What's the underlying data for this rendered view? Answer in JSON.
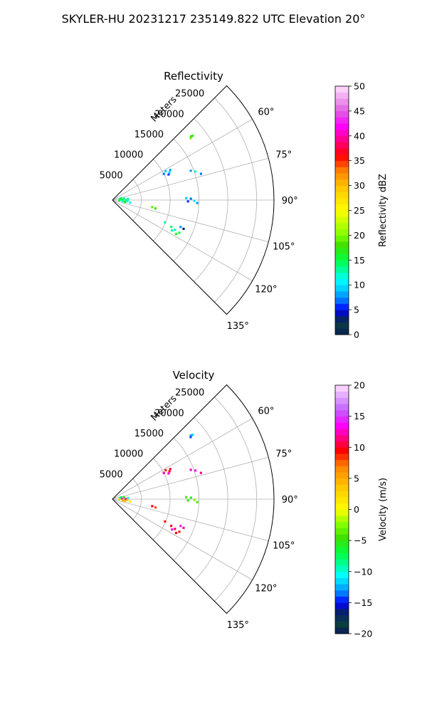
{
  "suptitle": "SKYLER-HU  20231217  235149.822 UTC Elevation 20°",
  "chart_data": [
    {
      "type": "heatmap",
      "projection": "polar-sector",
      "title": "Reflectivity",
      "radial_label": "Meters",
      "range_ticks": [
        5000,
        10000,
        15000,
        20000,
        25000
      ],
      "range_tick_labels": [
        "5000",
        "10000",
        "15000",
        "20000",
        "25000"
      ],
      "rmax": 28000,
      "azimuth_range": [
        45,
        135
      ],
      "azimuth_ticks": [
        60,
        75,
        90,
        105,
        120,
        135
      ],
      "azimuth_tick_labels": [
        "60°",
        "75°",
        "90°",
        "105°",
        "120°",
        "135°"
      ],
      "grid": true,
      "colorbar": {
        "label": "Reflectivity dBZ",
        "min": 0,
        "max": 50,
        "ticks": [
          0,
          5,
          10,
          15,
          20,
          25,
          30,
          35,
          40,
          45,
          50
        ],
        "tick_labels": [
          "0",
          "5",
          "10",
          "15",
          "20",
          "25",
          "30",
          "35",
          "40",
          "45",
          "50"
        ],
        "stops": [
          {
            "v": 0,
            "c": "#0a1a5a"
          },
          {
            "v": 1.5,
            "c": "#0b3d3d"
          },
          {
            "v": 3.5,
            "c": "#06206e"
          },
          {
            "v": 5,
            "c": "#0000ff"
          },
          {
            "v": 7,
            "c": "#0078ff"
          },
          {
            "v": 9,
            "c": "#00c8ff"
          },
          {
            "v": 11,
            "c": "#00ffff"
          },
          {
            "v": 13,
            "c": "#00ffa0"
          },
          {
            "v": 15,
            "c": "#00ff40"
          },
          {
            "v": 18,
            "c": "#40e000"
          },
          {
            "v": 20,
            "c": "#80ff00"
          },
          {
            "v": 25,
            "c": "#ffff00"
          },
          {
            "v": 30,
            "c": "#ffc000"
          },
          {
            "v": 33,
            "c": "#ff8000"
          },
          {
            "v": 36,
            "c": "#ff0000"
          },
          {
            "v": 39,
            "c": "#ff0080"
          },
          {
            "v": 42,
            "c": "#ff00ff"
          },
          {
            "v": 45,
            "c": "#e060e0"
          },
          {
            "v": 50,
            "c": "#ffe0ff"
          }
        ]
      },
      "echoes": [
        {
          "az": 51.0,
          "range": 17500,
          "value": 18
        },
        {
          "az": 51.3,
          "range": 17800,
          "value": 17
        },
        {
          "az": 51.6,
          "range": 17300,
          "value": 19
        },
        {
          "az": 61.5,
          "range": 10500,
          "value": 9
        },
        {
          "az": 62.5,
          "range": 11300,
          "value": 8
        },
        {
          "az": 63.0,
          "range": 10000,
          "value": 7
        },
        {
          "az": 64.0,
          "range": 11000,
          "value": 10
        },
        {
          "az": 65.5,
          "range": 10700,
          "value": 6
        },
        {
          "az": 69.5,
          "range": 14500,
          "value": 8
        },
        {
          "az": 71.0,
          "range": 15200,
          "value": 12
        },
        {
          "az": 73.5,
          "range": 16000,
          "value": 7
        },
        {
          "az": 78.0,
          "range": 1500,
          "value": 14
        },
        {
          "az": 81.0,
          "range": 2000,
          "value": 12
        },
        {
          "az": 84.0,
          "range": 1300,
          "value": 15
        },
        {
          "az": 86.0,
          "range": 2700,
          "value": 13
        },
        {
          "az": 88.0,
          "range": 1700,
          "value": 16
        },
        {
          "az": 90.0,
          "range": 2300,
          "value": 14
        },
        {
          "az": 92.0,
          "range": 1200,
          "value": 15
        },
        {
          "az": 94.0,
          "range": 2600,
          "value": 12
        },
        {
          "az": 96.0,
          "range": 1800,
          "value": 13
        },
        {
          "az": 98.0,
          "range": 3100,
          "value": 11
        },
        {
          "az": 99.0,
          "range": 2200,
          "value": 16
        },
        {
          "az": 88.5,
          "range": 12800,
          "value": 9
        },
        {
          "az": 89.0,
          "range": 13600,
          "value": 7
        },
        {
          "az": 90.5,
          "range": 14200,
          "value": 10
        },
        {
          "az": 91.0,
          "range": 13100,
          "value": 6
        },
        {
          "az": 92.0,
          "range": 14700,
          "value": 8
        },
        {
          "az": 100.0,
          "range": 7000,
          "value": 19
        },
        {
          "az": 101.0,
          "range": 7600,
          "value": 18
        },
        {
          "az": 113.0,
          "range": 9900,
          "value": 13
        },
        {
          "az": 114.5,
          "range": 11200,
          "value": 14
        },
        {
          "az": 115.5,
          "range": 12000,
          "value": 12
        },
        {
          "az": 116.0,
          "range": 12900,
          "value": 15
        },
        {
          "az": 117.0,
          "range": 11600,
          "value": 13
        },
        {
          "az": 118.0,
          "range": 12500,
          "value": 16
        },
        {
          "az": 111.5,
          "range": 12700,
          "value": 8
        },
        {
          "az": 112.0,
          "range": 13300,
          "value": 4
        }
      ]
    },
    {
      "type": "heatmap",
      "projection": "polar-sector",
      "title": "Velocity",
      "radial_label": "Meters",
      "range_ticks": [
        5000,
        10000,
        15000,
        20000,
        25000
      ],
      "range_tick_labels": [
        "5000",
        "10000",
        "15000",
        "20000",
        "25000"
      ],
      "rmax": 28000,
      "azimuth_range": [
        45,
        135
      ],
      "azimuth_ticks": [
        60,
        75,
        90,
        105,
        120,
        135
      ],
      "azimuth_tick_labels": [
        "60°",
        "75°",
        "90°",
        "105°",
        "120°",
        "135°"
      ],
      "grid": true,
      "colorbar": {
        "label": "Velocity (m/s)",
        "min": -20,
        "max": 20,
        "ticks": [
          -20,
          -15,
          -10,
          -5,
          0,
          5,
          10,
          15,
          20
        ],
        "tick_labels": [
          "−20",
          "−15",
          "−10",
          "−5",
          "0",
          "5",
          "10",
          "15",
          "20"
        ],
        "stops": [
          {
            "v": -20,
            "c": "#0a1a5a"
          },
          {
            "v": -18.5,
            "c": "#0b3d3d"
          },
          {
            "v": -16.5,
            "c": "#06206e"
          },
          {
            "v": -15,
            "c": "#0000ff"
          },
          {
            "v": -13.5,
            "c": "#0078ff"
          },
          {
            "v": -12,
            "c": "#00c8ff"
          },
          {
            "v": -10.5,
            "c": "#00ffff"
          },
          {
            "v": -9,
            "c": "#00ffa0"
          },
          {
            "v": -7,
            "c": "#00ff40"
          },
          {
            "v": -4.5,
            "c": "#40e000"
          },
          {
            "v": -2.5,
            "c": "#80ff00"
          },
          {
            "v": 0,
            "c": "#ffff00"
          },
          {
            "v": 4,
            "c": "#ffc000"
          },
          {
            "v": 7,
            "c": "#ff8000"
          },
          {
            "v": 9.5,
            "c": "#ff0000"
          },
          {
            "v": 11.5,
            "c": "#ff0080"
          },
          {
            "v": 13.5,
            "c": "#ff00ff"
          },
          {
            "v": 16,
            "c": "#c060ff"
          },
          {
            "v": 20,
            "c": "#ffe0ff"
          }
        ]
      },
      "echoes": [
        {
          "az": 51.0,
          "range": 17500,
          "value": -13
        },
        {
          "az": 51.3,
          "range": 17800,
          "value": -12
        },
        {
          "az": 51.6,
          "range": 17300,
          "value": -14
        },
        {
          "az": 61.5,
          "range": 10500,
          "value": 9
        },
        {
          "az": 62.5,
          "range": 11300,
          "value": 11
        },
        {
          "az": 63.0,
          "range": 10000,
          "value": 12
        },
        {
          "az": 64.0,
          "range": 11000,
          "value": 10
        },
        {
          "az": 65.5,
          "range": 10700,
          "value": 13
        },
        {
          "az": 69.5,
          "range": 14500,
          "value": 13
        },
        {
          "az": 71.0,
          "range": 15200,
          "value": 14
        },
        {
          "az": 73.5,
          "range": 16000,
          "value": 12
        },
        {
          "az": 78.0,
          "range": 1500,
          "value": -6
        },
        {
          "az": 81.0,
          "range": 2000,
          "value": -5
        },
        {
          "az": 84.0,
          "range": 1300,
          "value": -9
        },
        {
          "az": 86.0,
          "range": 2700,
          "value": -10
        },
        {
          "az": 88.0,
          "range": 1700,
          "value": 13
        },
        {
          "az": 90.0,
          "range": 2300,
          "value": 11
        },
        {
          "az": 92.0,
          "range": 1200,
          "value": 2
        },
        {
          "az": 94.0,
          "range": 2600,
          "value": 3
        },
        {
          "az": 96.0,
          "range": 1800,
          "value": 5
        },
        {
          "az": 98.0,
          "range": 3100,
          "value": 1
        },
        {
          "az": 99.0,
          "range": 2200,
          "value": 4
        },
        {
          "az": 88.5,
          "range": 12800,
          "value": -4
        },
        {
          "az": 89.0,
          "range": 13600,
          "value": -6
        },
        {
          "az": 90.5,
          "range": 14200,
          "value": -3
        },
        {
          "az": 91.0,
          "range": 13100,
          "value": -5
        },
        {
          "az": 92.0,
          "range": 14700,
          "value": -4
        },
        {
          "az": 100.0,
          "range": 7000,
          "value": 10
        },
        {
          "az": 101.0,
          "range": 7600,
          "value": 8
        },
        {
          "az": 113.0,
          "range": 9900,
          "value": 9
        },
        {
          "az": 114.5,
          "range": 11200,
          "value": 10
        },
        {
          "az": 115.5,
          "range": 12000,
          "value": 11
        },
        {
          "az": 116.0,
          "range": 12900,
          "value": 9
        },
        {
          "az": 117.0,
          "range": 11600,
          "value": 13
        },
        {
          "az": 118.0,
          "range": 12500,
          "value": 10
        },
        {
          "az": 111.5,
          "range": 12700,
          "value": 14
        },
        {
          "az": 112.0,
          "range": 13300,
          "value": 12
        }
      ]
    }
  ]
}
